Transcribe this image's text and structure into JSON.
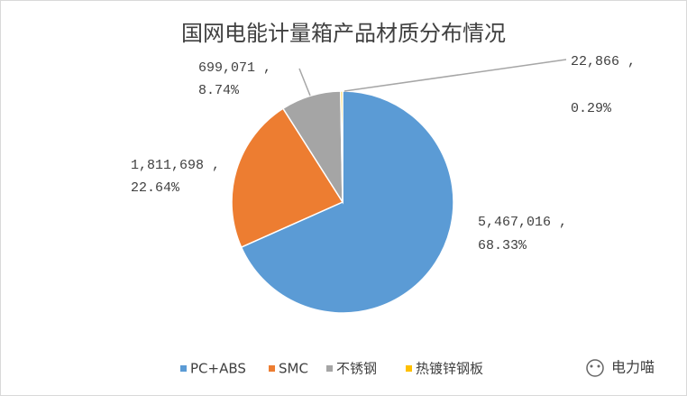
{
  "chart_data": {
    "type": "pie",
    "title": "国网电能计量箱产品材质分布情况",
    "categories": [
      "PC+ABS",
      "SMC",
      "不锈钢",
      "热镀锌钢板"
    ],
    "values": [
      5467016,
      1811698,
      699071,
      22866
    ],
    "value_labels": [
      "5,467,016 ,",
      "1,811,698 ,",
      "699,071 ,",
      "22,866 ,"
    ],
    "percents": [
      68.33,
      22.64,
      8.74,
      0.29
    ],
    "percent_labels": [
      "68.33%",
      "22.64%",
      "8.74%",
      "0.29%"
    ],
    "colors": [
      "#5b9bd5",
      "#ed7d31",
      "#a5a5a5",
      "#ffc000"
    ],
    "legend": "bottom",
    "watermark": "电力喵"
  }
}
